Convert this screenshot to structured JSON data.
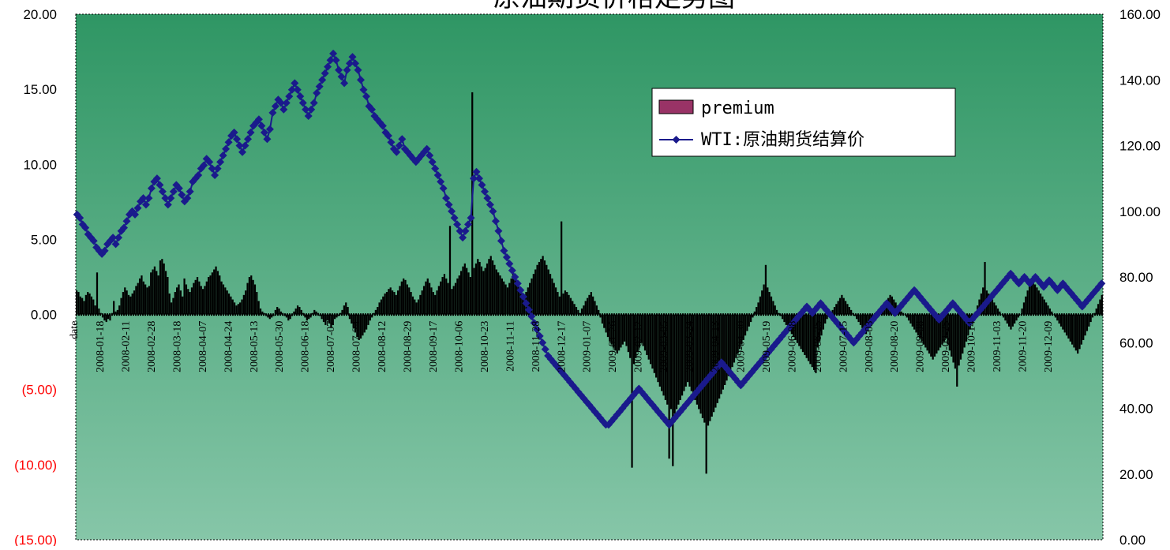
{
  "chart_data": {
    "type": "bar",
    "title": "原油期货价格走势图",
    "xlabel": "date",
    "x_ticks": [
      "2008-01-18",
      "2008-02-11",
      "2008-02-28",
      "2008-03-18",
      "2008-04-07",
      "2008-04-24",
      "2008-05-13",
      "2008-05-30",
      "2008-06-18",
      "2008-07-07",
      "2008-07-24",
      "2008-08-12",
      "2008-08-29",
      "2008-09-17",
      "2008-10-06",
      "2008-10-23",
      "2008-11-11",
      "2008-11-28",
      "2008-12-17",
      "2009-01-07",
      "2009-01-26",
      "2009-02-12",
      "2009-03-05",
      "2009-03-24",
      "2009-04-13",
      "2009-04-30",
      "2009-05-19",
      "2009-06-08",
      "2009-06-25",
      "2009-07-15",
      "2009-08-03",
      "2009-08-20",
      "2009-09-08",
      "2009-09-25",
      "2009-10-14",
      "2009-11-03",
      "2009-11-20",
      "2009-12-09"
    ],
    "y_left_ticks": [
      "20.00",
      "15.00",
      "10.00",
      "5.00",
      "0.00",
      "(5.00)",
      "(10.00)",
      "(15.00)"
    ],
    "y_right_ticks": [
      "160.00",
      "140.00",
      "120.00",
      "100.00",
      "80.00",
      "60.00",
      "40.00",
      "20.00",
      "0.00"
    ],
    "y_left_range": [
      -15,
      20
    ],
    "y_right_range": [
      0,
      160
    ],
    "grid": false,
    "legend_position": "top-right",
    "colors": {
      "background_top": "#2f9664",
      "background_bottom": "#86c6a8",
      "bars": "#000000",
      "line": "#1a1a8c",
      "negative_tick_text": "#ff0000",
      "legend_bar_swatch": "#993366"
    },
    "series": [
      {
        "name": "premium",
        "kind": "bar",
        "axis": "left",
        "values": [
          1.6,
          1.5,
          1.2,
          1.1,
          0.9,
          1.3,
          1.5,
          1.4,
          1.2,
          1.0,
          0.6,
          2.8,
          0.4,
          0.1,
          -0.2,
          -0.4,
          -0.5,
          -0.3,
          -0.4,
          0.1,
          0.9,
          0.2,
          0.3,
          0.6,
          1.1,
          1.5,
          1.8,
          1.6,
          1.3,
          1.2,
          1.4,
          1.6,
          1.9,
          2.1,
          2.4,
          2.6,
          2.2,
          2.0,
          1.8,
          1.9,
          2.8,
          3.0,
          3.2,
          2.9,
          2.6,
          3.6,
          3.7,
          3.4,
          2.9,
          2.5,
          1.4,
          0.8,
          1.1,
          1.5,
          1.8,
          2.0,
          1.6,
          1.2,
          2.4,
          2.0,
          1.7,
          1.5,
          1.8,
          2.1,
          2.3,
          2.5,
          2.2,
          1.9,
          1.7,
          1.9,
          2.2,
          2.5,
          2.6,
          2.8,
          3.0,
          3.2,
          2.9,
          2.6,
          2.2,
          2.0,
          1.8,
          1.6,
          1.4,
          1.2,
          1.0,
          0.8,
          0.6,
          0.7,
          0.8,
          1.0,
          1.3,
          1.6,
          2.1,
          2.5,
          2.6,
          2.3,
          2.0,
          1.5,
          0.9,
          0.4,
          0.2,
          0.1,
          -0.1,
          -0.2,
          -0.3,
          -0.2,
          -0.1,
          0.3,
          0.5,
          0.4,
          0.2,
          0.1,
          -0.1,
          -0.2,
          -0.4,
          -0.3,
          -0.1,
          0.2,
          0.4,
          0.6,
          0.5,
          0.3,
          0.1,
          -0.2,
          -0.4,
          -0.3,
          -0.2,
          0.1,
          0.3,
          0.2,
          0.1,
          -0.1,
          -0.3,
          -0.5,
          -0.7,
          -0.4,
          -0.6,
          -0.9,
          -0.7,
          -0.3,
          -0.2,
          -0.1,
          0.1,
          0.3,
          0.6,
          0.8,
          0.5,
          -0.3,
          -0.6,
          -0.9,
          -1.2,
          -1.5,
          -1.7,
          -1.6,
          -1.4,
          -1.2,
          -1.0,
          -0.7,
          -0.4,
          -0.2,
          0.1,
          0.3,
          0.5,
          0.8,
          1.0,
          1.2,
          1.4,
          1.5,
          1.7,
          1.8,
          1.6,
          1.5,
          1.3,
          1.6,
          1.9,
          2.2,
          2.4,
          2.3,
          2.0,
          1.8,
          1.5,
          1.2,
          1.0,
          0.8,
          1.0,
          1.3,
          1.6,
          1.9,
          2.2,
          2.4,
          2.1,
          1.8,
          1.5,
          1.3,
          1.6,
          1.9,
          2.2,
          2.5,
          2.7,
          2.4,
          2.1,
          5.9,
          1.7,
          1.9,
          2.1,
          2.4,
          2.6,
          2.9,
          3.2,
          3.4,
          3.1,
          2.8,
          2.5,
          14.8,
          3.1,
          3.4,
          3.7,
          3.5,
          3.2,
          2.9,
          3.1,
          3.4,
          3.7,
          3.9,
          3.6,
          3.3,
          3.0,
          2.8,
          2.6,
          2.4,
          2.2,
          2.0,
          1.8,
          2.1,
          2.4,
          2.7,
          2.5,
          2.2,
          1.9,
          1.6,
          1.4,
          1.2,
          1.5,
          1.8,
          2.1,
          2.4,
          2.7,
          3.0,
          3.3,
          3.5,
          3.7,
          3.9,
          3.6,
          3.3,
          3.0,
          2.7,
          2.4,
          2.1,
          1.8,
          1.5,
          1.2,
          6.2,
          1.4,
          1.6,
          1.5,
          1.3,
          1.1,
          0.9,
          0.7,
          0.5,
          0.3,
          0.1,
          0.4,
          0.6,
          0.9,
          1.1,
          1.3,
          1.5,
          1.2,
          0.9,
          0.6,
          0.3,
          -0.2,
          -0.6,
          -0.9,
          -1.2,
          -1.5,
          -1.8,
          -2.0,
          -2.2,
          -2.4,
          -2.6,
          -2.4,
          -2.2,
          -2.0,
          -1.8,
          -2.1,
          -2.5,
          -2.9,
          -10.2,
          -3.3,
          -2.9,
          -2.5,
          -2.2,
          -1.9,
          -2.1,
          -2.4,
          -2.7,
          -3.0,
          -3.3,
          -3.6,
          -3.9,
          -4.2,
          -4.5,
          -4.8,
          -5.1,
          -5.4,
          -5.7,
          -6.0,
          -9.6,
          -6.3,
          -10.1,
          -6.6,
          -6.3,
          -6.0,
          -5.7,
          -5.4,
          -5.1,
          -4.8,
          -4.5,
          -4.8,
          -5.1,
          -5.4,
          -5.7,
          -6.0,
          -6.3,
          -6.6,
          -6.9,
          -7.2,
          -10.6,
          -7.4,
          -7.1,
          -6.8,
          -6.5,
          -6.2,
          -5.9,
          -5.6,
          -5.3,
          -5.0,
          -4.7,
          -4.4,
          -4.1,
          -3.8,
          -3.5,
          -3.2,
          -2.9,
          -2.6,
          -2.3,
          -2.0,
          -1.7,
          -1.4,
          -1.1,
          -0.8,
          -0.5,
          -0.2,
          0.2,
          0.5,
          0.8,
          1.2,
          1.6,
          2.0,
          3.3,
          1.8,
          1.5,
          1.2,
          0.9,
          0.6,
          0.3,
          0.1,
          -0.1,
          -0.3,
          -0.5,
          -0.7,
          -0.9,
          -1.1,
          -1.3,
          -1.5,
          -1.7,
          -1.9,
          -2.1,
          -2.3,
          -2.5,
          -2.7,
          -2.9,
          -3.1,
          -3.3,
          -3.5,
          -3.7,
          -3.9,
          -2.2,
          -1.8,
          -1.4,
          -1.0,
          -0.6,
          -0.3,
          -0.1,
          0.1,
          0.3,
          0.5,
          0.7,
          0.9,
          1.1,
          1.3,
          1.1,
          0.9,
          0.7,
          0.5,
          0.3,
          0.1,
          -0.1,
          -0.3,
          -0.5,
          -0.7,
          -0.9,
          -1.1,
          -1.3,
          -1.1,
          -0.9,
          -0.7,
          -0.5,
          -0.3,
          -0.1,
          0.1,
          0.3,
          0.5,
          0.7,
          0.9,
          1.1,
          1.3,
          1.2,
          1.0,
          0.8,
          0.6,
          0.4,
          0.2,
          0.1,
          0.0,
          -0.2,
          -0.4,
          -0.6,
          -0.8,
          -1.0,
          -1.2,
          -1.4,
          -1.6,
          -1.8,
          -2.0,
          -2.2,
          -2.4,
          -2.6,
          -2.8,
          -3.0,
          -2.8,
          -2.6,
          -2.4,
          -2.2,
          -2.0,
          -1.8,
          -1.6,
          -2.0,
          -2.4,
          -2.8,
          -3.2,
          -3.6,
          -4.8,
          -3.4,
          -3.0,
          -2.6,
          -2.2,
          -1.8,
          -1.4,
          -1.0,
          -0.6,
          -0.2,
          0.2,
          0.6,
          1.0,
          1.4,
          1.8,
          3.5,
          1.6,
          1.4,
          1.2,
          1.0,
          0.8,
          0.6,
          0.4,
          0.2,
          0.0,
          -0.2,
          -0.4,
          -0.6,
          -0.8,
          -1.0,
          -0.8,
          -0.6,
          -0.4,
          -0.2,
          0.0,
          0.4,
          0.8,
          1.2,
          1.6,
          2.0,
          2.4,
          2.2,
          2.0,
          1.8,
          1.6,
          1.4,
          1.2,
          1.0,
          0.8,
          0.6,
          0.4,
          0.2,
          0.0,
          -0.2,
          -0.4,
          -0.6,
          -0.8,
          -1.0,
          -1.2,
          -1.4,
          -1.6,
          -1.8,
          -2.0,
          -2.2,
          -2.4,
          -2.6,
          -2.3,
          -2.0,
          -1.7,
          -1.4,
          -1.1,
          -0.8,
          -0.5,
          -0.2,
          0.1,
          0.4,
          0.7,
          1.0,
          1.3
        ]
      },
      {
        "name": "WTI:原油期货结算价",
        "kind": "line",
        "axis": "right",
        "values": [
          99,
          98,
          96,
          95,
          93,
          92,
          91,
          89,
          88,
          87,
          88,
          90,
          91,
          92,
          90,
          92,
          94,
          95,
          97,
          99,
          100,
          99,
          101,
          103,
          104,
          102,
          104,
          107,
          109,
          110,
          108,
          106,
          104,
          102,
          104,
          106,
          108,
          107,
          105,
          103,
          104,
          106,
          109,
          110,
          111,
          113,
          114,
          116,
          115,
          113,
          111,
          113,
          115,
          117,
          119,
          121,
          123,
          124,
          122,
          120,
          118,
          120,
          122,
          124,
          126,
          127,
          128,
          126,
          124,
          122,
          125,
          130,
          132,
          134,
          133,
          131,
          133,
          135,
          137,
          139,
          137,
          135,
          133,
          131,
          129,
          131,
          133,
          136,
          138,
          140,
          142,
          144,
          146,
          148,
          146,
          143,
          141,
          139,
          143,
          145,
          147,
          145,
          143,
          140,
          137,
          135,
          132,
          131,
          129,
          128,
          127,
          126,
          124,
          123,
          121,
          119,
          118,
          120,
          122,
          119,
          118,
          117,
          116,
          115,
          116,
          117,
          118,
          119,
          117,
          115,
          113,
          111,
          109,
          107,
          104,
          102,
          100,
          98,
          96,
          94,
          92,
          94,
          96,
          98,
          110,
          112,
          110,
          108,
          106,
          104,
          102,
          100,
          97,
          94,
          91,
          88,
          86,
          84,
          82,
          80,
          78,
          76,
          74,
          72,
          70,
          68,
          66,
          64,
          62,
          60,
          58,
          56,
          55,
          54,
          53,
          52,
          51,
          50,
          49,
          48,
          47,
          46,
          45,
          44,
          43,
          42,
          41,
          40,
          39,
          38,
          37,
          36,
          35,
          35,
          36,
          37,
          38,
          39,
          40,
          41,
          42,
          43,
          44,
          45,
          46,
          45,
          44,
          43,
          42,
          41,
          40,
          39,
          38,
          37,
          36,
          35,
          36,
          37,
          38,
          39,
          40,
          41,
          42,
          43,
          44,
          45,
          46,
          47,
          48,
          49,
          50,
          51,
          52,
          53,
          54,
          53,
          52,
          51,
          50,
          49,
          48,
          47,
          48,
          49,
          50,
          51,
          52,
          53,
          54,
          55,
          56,
          57,
          58,
          59,
          60,
          61,
          62,
          63,
          64,
          65,
          66,
          67,
          68,
          69,
          70,
          71,
          70,
          69,
          70,
          71,
          72,
          71,
          70,
          69,
          68,
          67,
          66,
          65,
          64,
          63,
          62,
          61,
          60,
          61,
          62,
          63,
          64,
          65,
          66,
          67,
          68,
          69,
          70,
          71,
          72,
          71,
          70,
          69,
          70,
          71,
          72,
          73,
          74,
          75,
          76,
          75,
          74,
          73,
          72,
          71,
          70,
          69,
          68,
          67,
          68,
          69,
          70,
          71,
          72,
          71,
          70,
          69,
          68,
          67,
          66,
          67,
          68,
          69,
          70,
          71,
          72,
          73,
          74,
          75,
          76,
          77,
          78,
          79,
          80,
          81,
          80,
          79,
          78,
          79,
          80,
          79,
          78,
          79,
          80,
          79,
          78,
          77,
          78,
          79,
          78,
          77,
          76,
          77,
          78,
          77,
          76,
          75,
          74,
          73,
          72,
          71,
          72,
          73,
          74,
          75,
          76,
          77,
          78
        ]
      }
    ]
  }
}
